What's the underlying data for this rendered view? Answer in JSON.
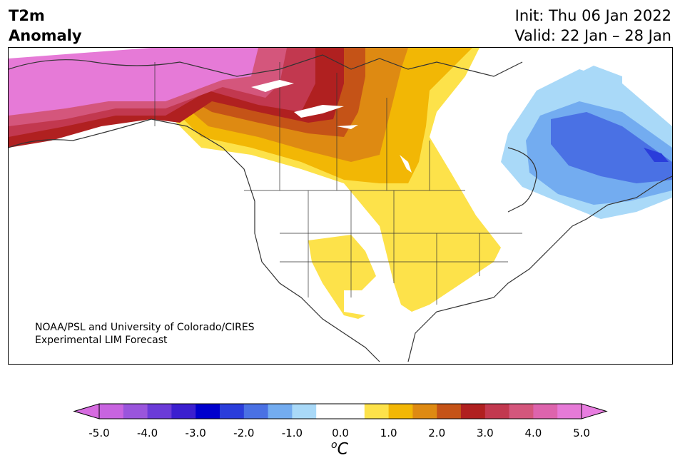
{
  "header": {
    "variable_line1": "T2m",
    "variable_line2": "Anomaly",
    "init": "Init: Thu 06 Jan 2022",
    "valid": "Valid: 22 Jan – 28 Jan"
  },
  "credit": {
    "line1": "NOAA/PSL and University of Colorado/CIRES",
    "line2": "Experimental LIM Forecast"
  },
  "colorbar": {
    "unit_base": "C",
    "unit_superscript": "o",
    "ticks": [
      "-5.0",
      "-4.0",
      "-3.0",
      "-2.0",
      "-1.0",
      "0.0",
      "1.0",
      "2.0",
      "3.0",
      "4.0",
      "5.0"
    ],
    "under_color": "#d66be0",
    "over_color": "#e87de0",
    "bins": [
      {
        "lo": -5.0,
        "hi": -4.5,
        "color": "#c864e0"
      },
      {
        "lo": -4.5,
        "hi": -4.0,
        "color": "#9a55dc"
      },
      {
        "lo": -4.0,
        "hi": -3.5,
        "color": "#6b3bd8"
      },
      {
        "lo": -3.5,
        "hi": -3.0,
        "color": "#3b1fcf"
      },
      {
        "lo": -3.0,
        "hi": -2.5,
        "color": "#0000cd"
      },
      {
        "lo": -2.5,
        "hi": -2.0,
        "color": "#2a3ddb"
      },
      {
        "lo": -2.0,
        "hi": -1.5,
        "color": "#4a71e4"
      },
      {
        "lo": -1.5,
        "hi": -1.0,
        "color": "#73acf0"
      },
      {
        "lo": -1.0,
        "hi": -0.5,
        "color": "#a9d9f8"
      },
      {
        "lo": -0.5,
        "hi": 0.0,
        "color": "#ffffff"
      },
      {
        "lo": 0.0,
        "hi": 0.5,
        "color": "#ffffff"
      },
      {
        "lo": 0.5,
        "hi": 1.0,
        "color": "#fde24a"
      },
      {
        "lo": 1.0,
        "hi": 1.5,
        "color": "#f2b705"
      },
      {
        "lo": 1.5,
        "hi": 2.0,
        "color": "#de8a12"
      },
      {
        "lo": 2.0,
        "hi": 2.5,
        "color": "#c55317"
      },
      {
        "lo": 2.5,
        "hi": 3.0,
        "color": "#b02020"
      },
      {
        "lo": 3.0,
        "hi": 3.5,
        "color": "#c2384f"
      },
      {
        "lo": 3.5,
        "hi": 4.0,
        "color": "#d4567c"
      },
      {
        "lo": 4.0,
        "hi": 4.5,
        "color": "#dd64ad"
      },
      {
        "lo": 4.5,
        "hi": 5.0,
        "color": "#e67ad7"
      }
    ]
  }
}
